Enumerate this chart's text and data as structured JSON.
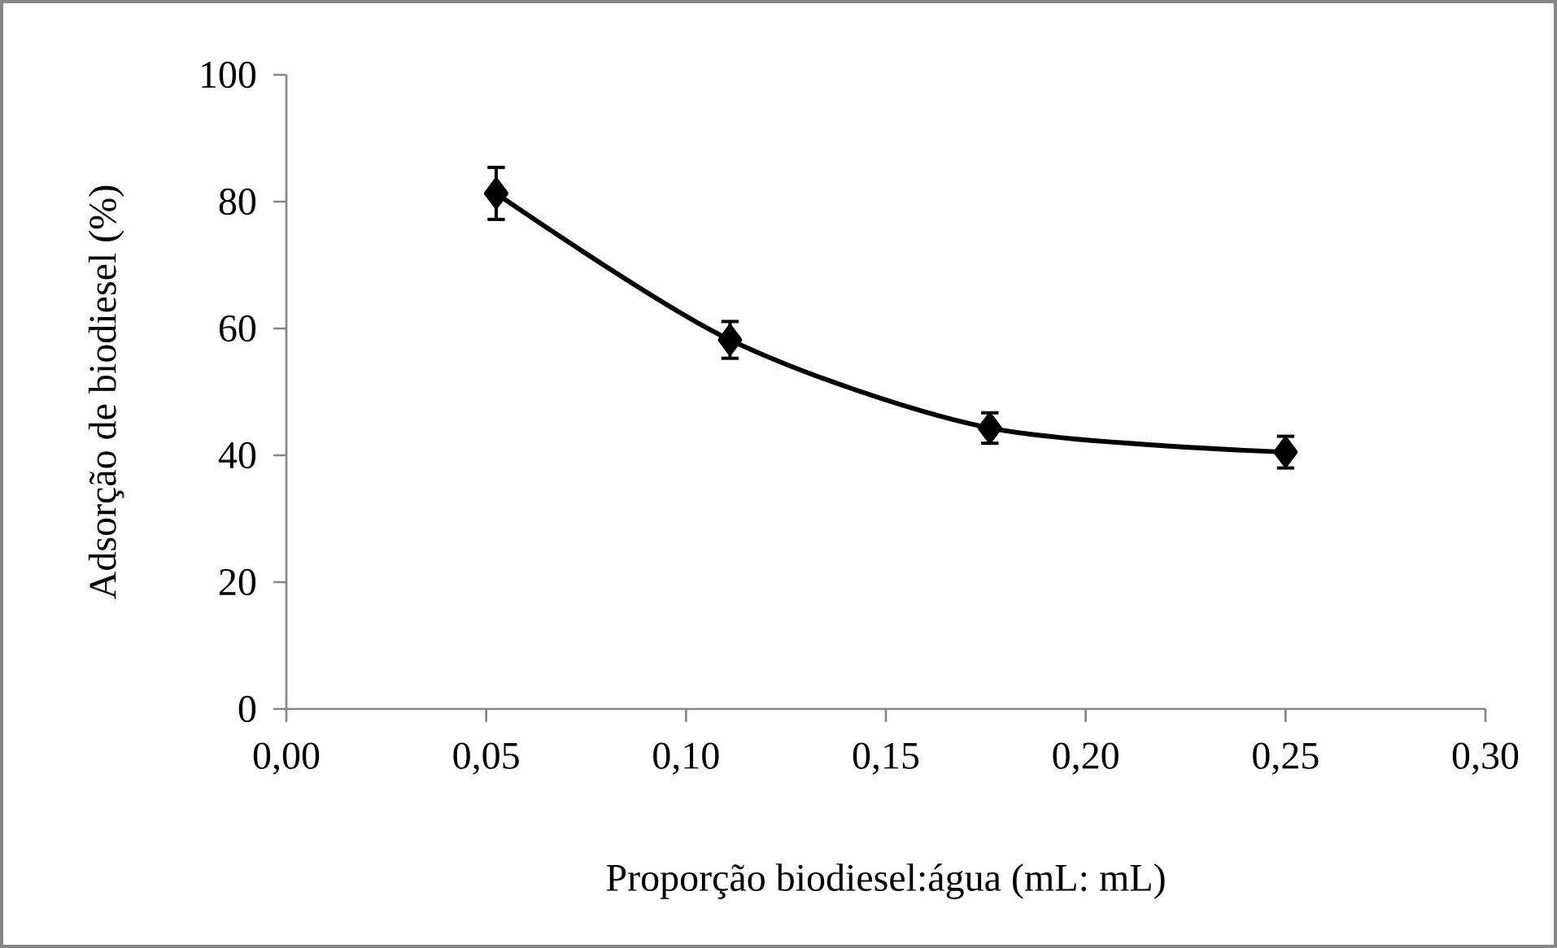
{
  "chart_data": {
    "type": "line",
    "xlabel": "Proporção biodiesel:água (mL: mL)",
    "ylabel": "Adsorção de biodiesel (%)",
    "x": [
      0.0525,
      0.111,
      0.176,
      0.25
    ],
    "series": [
      {
        "color": "#000000",
        "values": [
          81.3,
          58.2,
          44.3,
          40.5
        ],
        "errors": [
          4.1,
          2.9,
          2.4,
          2.5
        ]
      }
    ],
    "xlim": [
      0,
      0.3
    ],
    "ylim": [
      0,
      100
    ],
    "xticks": [
      {
        "value": 0,
        "label": "0,00"
      },
      {
        "value": 0.05,
        "label": "0,05"
      },
      {
        "value": 0.1,
        "label": "0,10"
      },
      {
        "value": 0.15,
        "label": "0,15"
      },
      {
        "value": 0.2,
        "label": "0,20"
      },
      {
        "value": 0.25,
        "label": "0,25"
      },
      {
        "value": 0.3,
        "label": "0,30"
      }
    ],
    "yticks": [
      0,
      20,
      40,
      60,
      80,
      100
    ],
    "marker": "diamond",
    "line_style": "solid"
  }
}
